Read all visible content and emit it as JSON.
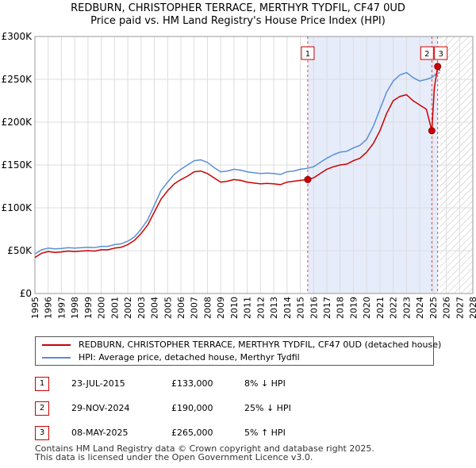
{
  "title_line1": "REDBURN, CHRISTOPHER TERRACE, MERTHYR TYDFIL, CF47 0UD",
  "title_line2": "Price paid vs. HM Land Registry's House Price Index (HPI)",
  "colors": {
    "property": "#cc0000",
    "hpi": "#5b8fd6",
    "shade": "#e6ecfa",
    "grid": "#dddddd",
    "marker_border": "#cc0000"
  },
  "chart_data": {
    "type": "line",
    "xlabel": "",
    "ylabel": "",
    "xlim": [
      1995,
      2028
    ],
    "ylim": [
      0,
      300000
    ],
    "x_ticks": [
      "1995",
      "1996",
      "1997",
      "1998",
      "1999",
      "2000",
      "2001",
      "2002",
      "2003",
      "2004",
      "2005",
      "2006",
      "2007",
      "2008",
      "2009",
      "2010",
      "2011",
      "2012",
      "2013",
      "2014",
      "2015",
      "2016",
      "2017",
      "2018",
      "2019",
      "2020",
      "2021",
      "2022",
      "2023",
      "2024",
      "2025",
      "2026",
      "2027",
      "2028"
    ],
    "y_ticks": [
      {
        "value": 0,
        "label": "£0"
      },
      {
        "value": 50000,
        "label": "£50K"
      },
      {
        "value": 100000,
        "label": "£100K"
      },
      {
        "value": 150000,
        "label": "£150K"
      },
      {
        "value": 200000,
        "label": "£200K"
      },
      {
        "value": 250000,
        "label": "£250K"
      },
      {
        "value": 300000,
        "label": "£300K"
      }
    ],
    "grid": true,
    "shaded_region": [
      2015.56,
      2025.35
    ],
    "forecast_hatch_from": 2025.5,
    "series": [
      {
        "name": "REDBURN, CHRISTOPHER TERRACE, MERTHYR TYDFIL, CF47 0UD (detached house)",
        "color": "#cc0000",
        "x": [
          1995.0,
          1995.5,
          1996.0,
          1996.5,
          1997.0,
          1997.5,
          1998.0,
          1998.5,
          1999.0,
          1999.5,
          2000.0,
          2000.5,
          2001.0,
          2001.5,
          2002.0,
          2002.5,
          2003.0,
          2003.5,
          2004.0,
          2004.5,
          2005.0,
          2005.5,
          2006.0,
          2006.5,
          2007.0,
          2007.5,
          2008.0,
          2008.5,
          2009.0,
          2009.5,
          2010.0,
          2010.5,
          2011.0,
          2011.5,
          2012.0,
          2012.5,
          2013.0,
          2013.5,
          2014.0,
          2014.5,
          2015.0,
          2015.56,
          2016.0,
          2016.5,
          2017.0,
          2017.5,
          2018.0,
          2018.5,
          2019.0,
          2019.5,
          2020.0,
          2020.5,
          2021.0,
          2021.5,
          2022.0,
          2022.5,
          2023.0,
          2023.5,
          2024.0,
          2024.5,
          2024.91,
          2025.1,
          2025.35,
          2025.5
        ],
        "values": [
          42000,
          47000,
          49000,
          48000,
          48500,
          49500,
          49000,
          49500,
          50000,
          49500,
          51000,
          51000,
          53000,
          54000,
          57000,
          62000,
          70000,
          80000,
          95000,
          110000,
          120000,
          128000,
          133000,
          137000,
          142000,
          143000,
          140000,
          135000,
          130000,
          131000,
          133000,
          132000,
          130000,
          129000,
          128000,
          128500,
          128000,
          127000,
          130000,
          131000,
          132000,
          133000,
          135000,
          140000,
          145000,
          148000,
          150000,
          151000,
          155000,
          158000,
          165000,
          175000,
          190000,
          210000,
          225000,
          230000,
          232000,
          225000,
          220000,
          215000,
          190000,
          240000,
          265000,
          260000
        ]
      },
      {
        "name": "HPI: Average price, detached house, Merthyr Tydfil",
        "color": "#5b8fd6",
        "x": [
          1995.0,
          1995.5,
          1996.0,
          1996.5,
          1997.0,
          1997.5,
          1998.0,
          1998.5,
          1999.0,
          1999.5,
          2000.0,
          2000.5,
          2001.0,
          2001.5,
          2002.0,
          2002.5,
          2003.0,
          2003.5,
          2004.0,
          2004.5,
          2005.0,
          2005.5,
          2006.0,
          2006.5,
          2007.0,
          2007.5,
          2008.0,
          2008.5,
          2009.0,
          2009.5,
          2010.0,
          2010.5,
          2011.0,
          2011.5,
          2012.0,
          2012.5,
          2013.0,
          2013.5,
          2014.0,
          2014.5,
          2015.0,
          2015.5,
          2016.0,
          2016.5,
          2017.0,
          2017.5,
          2018.0,
          2018.5,
          2019.0,
          2019.5,
          2020.0,
          2020.5,
          2021.0,
          2021.5,
          2022.0,
          2022.5,
          2023.0,
          2023.5,
          2024.0,
          2024.5,
          2024.9,
          2025.2,
          2025.5
        ],
        "values": [
          46000,
          51000,
          53000,
          52000,
          52500,
          53500,
          53000,
          53500,
          54000,
          53500,
          55000,
          55000,
          57000,
          58000,
          61000,
          66000,
          75000,
          86000,
          103000,
          120000,
          130000,
          139000,
          145000,
          150000,
          155000,
          156000,
          153000,
          147000,
          142000,
          143000,
          145000,
          144000,
          142000,
          141000,
          140000,
          140500,
          140000,
          139000,
          142000,
          143000,
          145000,
          146000,
          148000,
          153000,
          158000,
          162000,
          165000,
          166000,
          170000,
          173000,
          180000,
          195000,
          215000,
          235000,
          248000,
          255000,
          258000,
          252000,
          248000,
          250000,
          252000,
          256000,
          258000
        ]
      }
    ],
    "sales": [
      {
        "label": "1",
        "x": 2015.56,
        "value": 133000
      },
      {
        "label": "2",
        "x": 2024.91,
        "value": 190000
      },
      {
        "label": "3",
        "x": 2025.35,
        "value": 265000
      }
    ]
  },
  "legend": [
    {
      "label": "REDBURN, CHRISTOPHER TERRACE, MERTHYR TYDFIL, CF47 0UD (detached house)",
      "color": "#cc0000"
    },
    {
      "label": "HPI: Average price, detached house, Merthyr Tydfil",
      "color": "#5b8fd6"
    }
  ],
  "transactions": [
    {
      "num": "1",
      "date": "23-JUL-2015",
      "price": "£133,000",
      "hpi": "8% ↓ HPI"
    },
    {
      "num": "2",
      "date": "29-NOV-2024",
      "price": "£190,000",
      "hpi": "25% ↓ HPI"
    },
    {
      "num": "3",
      "date": "08-MAY-2025",
      "price": "£265,000",
      "hpi": "5% ↑ HPI"
    }
  ],
  "footer_line1": "Contains HM Land Registry data © Crown copyright and database right 2025.",
  "footer_line2": "This data is licensed under the Open Government Licence v3.0."
}
